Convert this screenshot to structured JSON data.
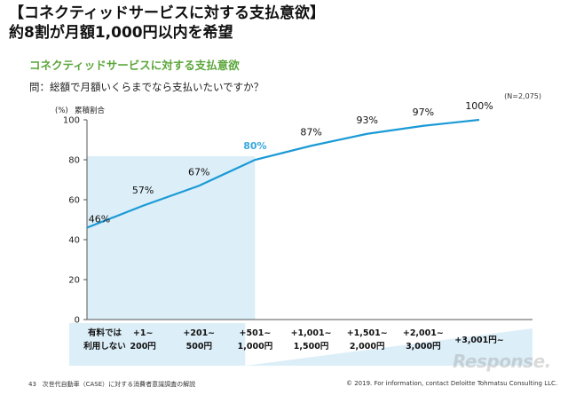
{
  "header": {
    "title_line1": "【コネクティッドサービスに対する支払意欲】",
    "title_line2": "約8割が月額1,000円以内を希望"
  },
  "chart_section": {
    "subtitle": "コネクティッドサービスに対する支払意欲",
    "question": "問：総額で月額いくらまでなら支払いたいですか？",
    "sample_size": "(N=2,075)"
  },
  "chart_data": {
    "type": "line",
    "yunit": "(%)",
    "ylabel": "累積割合",
    "ylim": [
      0,
      100
    ],
    "yticks": [
      0,
      20,
      40,
      60,
      80,
      100
    ],
    "grid": false,
    "categories": [
      [
        "有料では",
        "利用しない"
      ],
      [
        "+1~",
        "200円"
      ],
      [
        "+201~",
        "500円"
      ],
      [
        "+501~",
        "1,000円"
      ],
      [
        "+1,001~",
        "1,500円"
      ],
      [
        "+1,501~",
        "2,000円"
      ],
      [
        "+2,001~",
        "3,000円"
      ],
      [
        "+3,001円~"
      ]
    ],
    "values": [
      46,
      57,
      67,
      80,
      87,
      93,
      97,
      100
    ],
    "point_labels": [
      "46%",
      "57%",
      "67%",
      "80%",
      "87%",
      "93%",
      "97%",
      "100%"
    ],
    "highlight_label_index": 3,
    "highlight_region_value": 80,
    "line_color": "#1a9ad6",
    "highlight_color": "#dceef8",
    "highlight_text_color": "#3aa8df"
  },
  "footer": {
    "page_number": "43",
    "doc_title": "次世代自動車（CASE）に対する消費者意識調査の解説",
    "copyright": "© 2019. For information, contact Deloitte Tohmatsu Consulting LLC."
  },
  "watermark": "Response."
}
